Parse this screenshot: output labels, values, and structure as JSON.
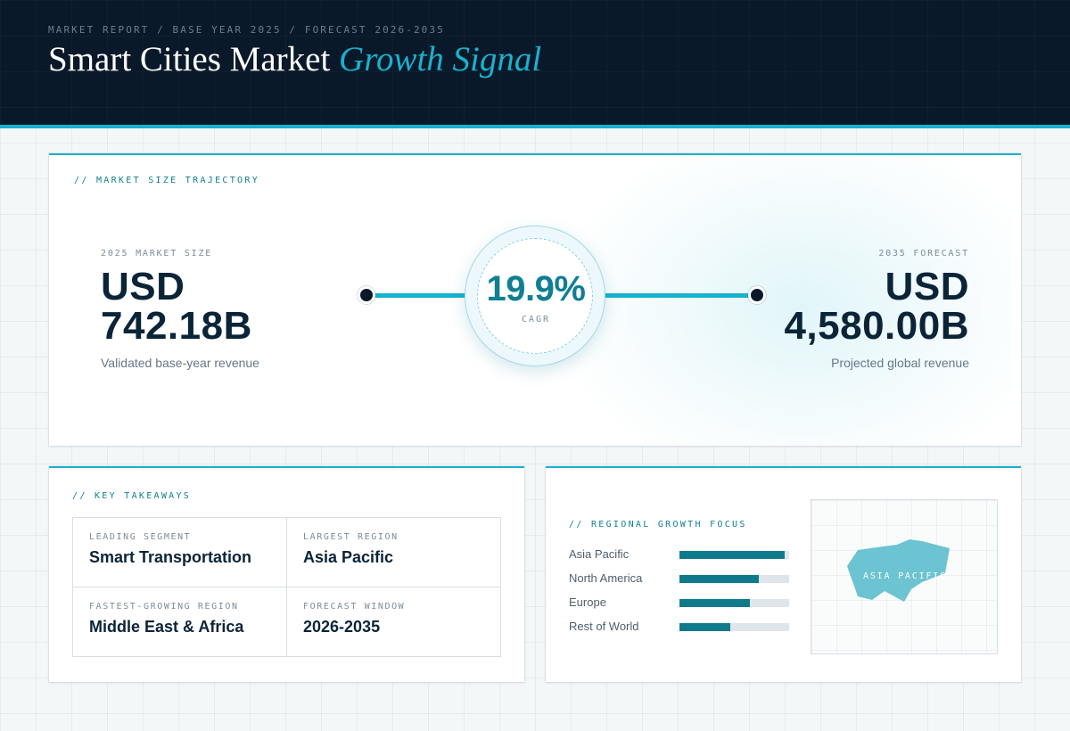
{
  "header": {
    "kicker": "MARKET REPORT / BASE YEAR 2025 / FORECAST 2026-2035",
    "title": "Smart Cities Market",
    "title_accent": "Growth Signal"
  },
  "trajectory": {
    "section_label": "// MARKET SIZE TRAJECTORY",
    "base": {
      "label": "2025 MARKET SIZE",
      "currency": "USD",
      "value": "742.18B",
      "note": "Validated base-year revenue"
    },
    "forecast": {
      "label": "2035 FORECAST",
      "currency": "USD",
      "value": "4,580.00B",
      "note": "Projected global revenue"
    },
    "cagr": {
      "value": "19.9%",
      "label": "CAGR"
    }
  },
  "takeaways": {
    "section_label": "// KEY TAKEAWAYS",
    "items": [
      {
        "label": "LEADING SEGMENT",
        "value": "Smart Transportation"
      },
      {
        "label": "LARGEST REGION",
        "value": "Asia Pacific"
      },
      {
        "label": "FASTEST-GROWING REGION",
        "value": "Middle East & Africa"
      },
      {
        "label": "FORECAST WINDOW",
        "value": "2026-2035"
      }
    ]
  },
  "regional": {
    "section_label": "// REGIONAL GROWTH FOCUS",
    "regions": [
      {
        "name": "Asia Pacific",
        "share": 0.96
      },
      {
        "name": "North America",
        "share": 0.72
      },
      {
        "name": "Europe",
        "share": 0.64
      },
      {
        "name": "Rest of World",
        "share": 0.46
      }
    ],
    "map_label": "ASIA PACIFIC"
  },
  "colors": {
    "navy": "#0a1929",
    "accent_cyan": "#16b2cf",
    "teal": "#0f7a8c",
    "map_region": "#6cc3d1"
  }
}
